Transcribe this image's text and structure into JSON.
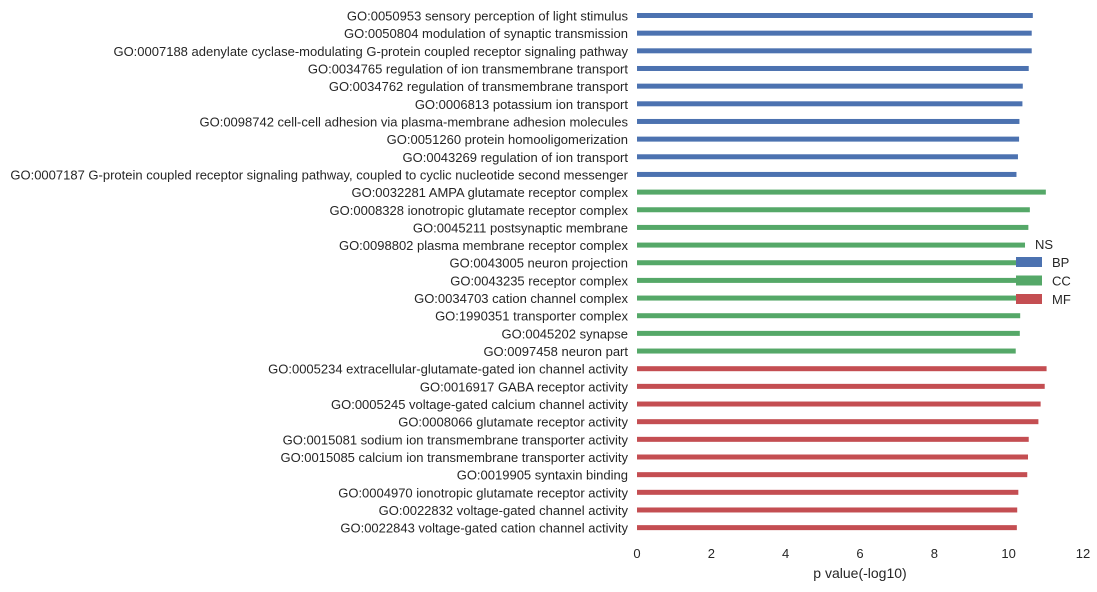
{
  "chart_data": {
    "type": "bar",
    "orientation": "horizontal",
    "xlabel": "p value(-log10)",
    "ylabel": "",
    "xlim": [
      0,
      12
    ],
    "xticks": [
      "0",
      "2",
      "4",
      "6",
      "8",
      "10",
      "12"
    ],
    "grid": false,
    "legend": {
      "title": "NS",
      "placement": "right",
      "entries": [
        {
          "label": "BP",
          "color": "#4c72b0"
        },
        {
          "label": "CC",
          "color": "#55a868"
        },
        {
          "label": "MF",
          "color": "#c44e52"
        }
      ]
    },
    "series": [
      {
        "name": "BP",
        "color": "#4c72b0",
        "categories": [
          "GO:0050953 sensory perception of light stimulus",
          "GO:0050804 modulation of synaptic transmission",
          "GO:0007188 adenylate cyclase-modulating G-protein coupled receptor signaling pathway",
          "GO:0034765 regulation of ion transmembrane transport",
          "GO:0034762 regulation of transmembrane transport",
          "GO:0006813 potassium ion transport",
          "GO:0098742 cell-cell adhesion via plasma-membrane adhesion molecules",
          "GO:0051260 protein homooligomerization",
          "GO:0043269 regulation of ion transport",
          "GO:0007187 G-protein coupled receptor signaling pathway, coupled to cyclic nucleotide second messenger"
        ],
        "values": [
          10.65,
          10.62,
          10.62,
          10.54,
          10.38,
          10.37,
          10.29,
          10.28,
          10.25,
          10.21
        ]
      },
      {
        "name": "CC",
        "color": "#55a868",
        "categories": [
          "GO:0032281 AMPA glutamate receptor complex",
          "GO:0008328 ionotropic glutamate receptor complex",
          "GO:0045211 postsynaptic membrane",
          "GO:0098802 plasma membrane receptor complex",
          "GO:0043005 neuron projection",
          "GO:0043235 receptor complex",
          "GO:0034703 cation channel complex",
          "GO:1990351 transporter complex",
          "GO:0045202 synapse",
          "GO:0097458 neuron part"
        ],
        "values": [
          11.0,
          10.57,
          10.53,
          10.44,
          10.37,
          10.35,
          10.33,
          10.31,
          10.3,
          10.19
        ]
      },
      {
        "name": "MF",
        "color": "#c44e52",
        "categories": [
          "GO:0005234 extracellular-glutamate-gated ion channel activity",
          "GO:0016917 GABA receptor activity",
          "GO:0005245 voltage-gated calcium channel activity",
          "GO:0008066 glutamate receptor activity",
          "GO:0015081 sodium ion transmembrane transporter activity",
          "GO:0015085 calcium ion transmembrane transporter activity",
          "GO:0019905 syntaxin binding",
          "GO:0004970 ionotropic glutamate receptor activity",
          "GO:0022832 voltage-gated channel activity",
          "GO:0022843 voltage-gated cation channel activity"
        ],
        "values": [
          11.02,
          10.97,
          10.86,
          10.8,
          10.54,
          10.52,
          10.5,
          10.26,
          10.23,
          10.22
        ]
      }
    ]
  }
}
